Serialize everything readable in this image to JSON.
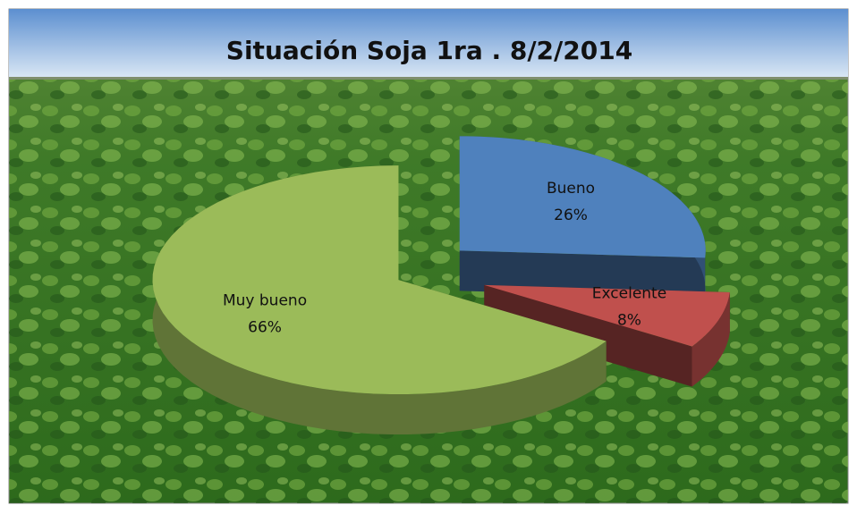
{
  "chart_data": {
    "type": "pie",
    "title": "Situación Soja 1ra . 8/2/2014",
    "categories": [
      "Bueno",
      "Excelente",
      "Muy bueno"
    ],
    "values": [
      26,
      8,
      66
    ],
    "value_labels": [
      "26%",
      "8%",
      "66%"
    ],
    "colors": [
      "#4f81bd",
      "#c0504d",
      "#9bbb59"
    ]
  }
}
